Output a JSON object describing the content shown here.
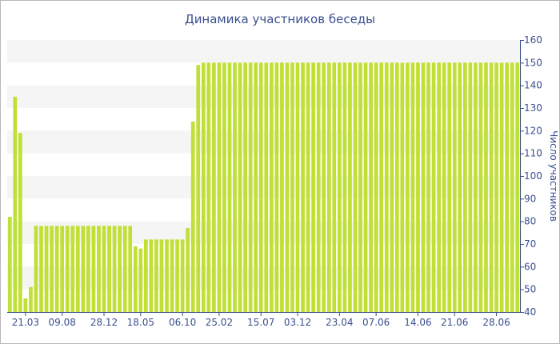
{
  "colors": {
    "bar": "#bfe034",
    "band": "#f5f5f5",
    "text": "#3a4f8f",
    "axis": "#3a4f8f"
  },
  "chart_data": {
    "type": "bar",
    "title": "Динамика участников беседы",
    "xlabel": "",
    "ylabel": "Число участников",
    "ylim": [
      40,
      160
    ],
    "y_ticks": [
      40,
      50,
      60,
      70,
      80,
      90,
      100,
      110,
      120,
      130,
      140,
      150,
      160
    ],
    "y_axis_side": "right",
    "grid": "alternating horizontal bands",
    "x_tick_labels": [
      {
        "label": "21.03",
        "index": 3
      },
      {
        "label": "09.08",
        "index": 10
      },
      {
        "label": "28.12",
        "index": 18
      },
      {
        "label": "18.05",
        "index": 25
      },
      {
        "label": "06.10",
        "index": 33
      },
      {
        "label": "25.02",
        "index": 40
      },
      {
        "label": "15.07",
        "index": 48
      },
      {
        "label": "03.12",
        "index": 55
      },
      {
        "label": "23.04",
        "index": 63
      },
      {
        "label": "07.06",
        "index": 70
      },
      {
        "label": "14.06",
        "index": 78
      },
      {
        "label": "21.06",
        "index": 85
      },
      {
        "label": "28.06",
        "index": 93
      }
    ],
    "values": [
      82,
      135,
      119,
      46,
      51,
      78,
      78,
      78,
      78,
      78,
      78,
      78,
      78,
      78,
      78,
      78,
      78,
      78,
      78,
      78,
      78,
      78,
      78,
      78,
      69,
      68,
      72,
      72,
      72,
      72,
      72,
      72,
      72,
      72,
      77,
      124,
      149,
      150,
      150,
      150,
      150,
      150,
      150,
      150,
      150,
      150,
      150,
      150,
      150,
      150,
      150,
      150,
      150,
      150,
      150,
      150,
      150,
      150,
      150,
      150,
      150,
      150,
      150,
      150,
      150,
      150,
      150,
      150,
      150,
      150,
      150,
      150,
      150,
      150,
      150,
      150,
      150,
      150,
      150,
      150,
      150,
      150,
      150,
      150,
      150,
      150,
      150,
      150,
      150,
      150,
      150,
      150,
      150,
      150,
      150,
      150,
      150,
      150
    ]
  }
}
